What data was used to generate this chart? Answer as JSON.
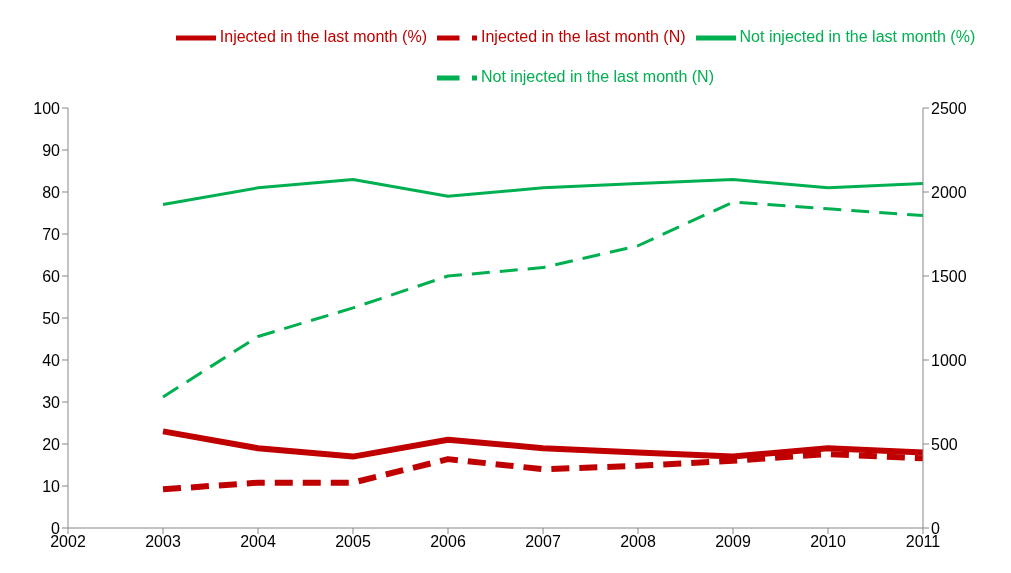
{
  "chart_data": {
    "type": "line",
    "categories": [
      "2002",
      "2003",
      "2004",
      "2005",
      "2006",
      "2007",
      "2008",
      "2009",
      "2010",
      "2011"
    ],
    "series": [
      {
        "name": "Injected in the last month (%)",
        "color": "#c00000",
        "line_style": "solid",
        "values": [
          null,
          23,
          19,
          17,
          21,
          19,
          18,
          17,
          19,
          18
        ]
      },
      {
        "name": "Not injected in the last month (%)",
        "color": "#00b050",
        "line_style": "solid",
        "values": [
          null,
          77,
          81,
          83,
          79,
          81,
          82,
          83,
          81,
          82
        ]
      },
      {
        "name": "Injected in the last month (N)",
        "color": "#c00000",
        "line_style": "dashed",
        "axis": "y2",
        "values": [
          null,
          230,
          270,
          270,
          410,
          350,
          370,
          400,
          440,
          415
        ]
      },
      {
        "name": "Not injected in the last month (N)",
        "color": "#00b050",
        "line_style": "dashed",
        "axis": "y2",
        "values": [
          null,
          780,
          1140,
          1310,
          1500,
          1550,
          1680,
          1940,
          1900,
          1860
        ]
      }
    ],
    "ylim": [
      0,
      100
    ],
    "yticks": [
      0,
      10,
      20,
      30,
      40,
      50,
      60,
      70,
      80,
      90,
      100
    ],
    "y2lim": [
      0,
      2500
    ],
    "y2ticks": [
      0,
      500,
      1000,
      1500,
      2000,
      2500
    ],
    "legend": "top",
    "grid": false,
    "marker": "none"
  }
}
